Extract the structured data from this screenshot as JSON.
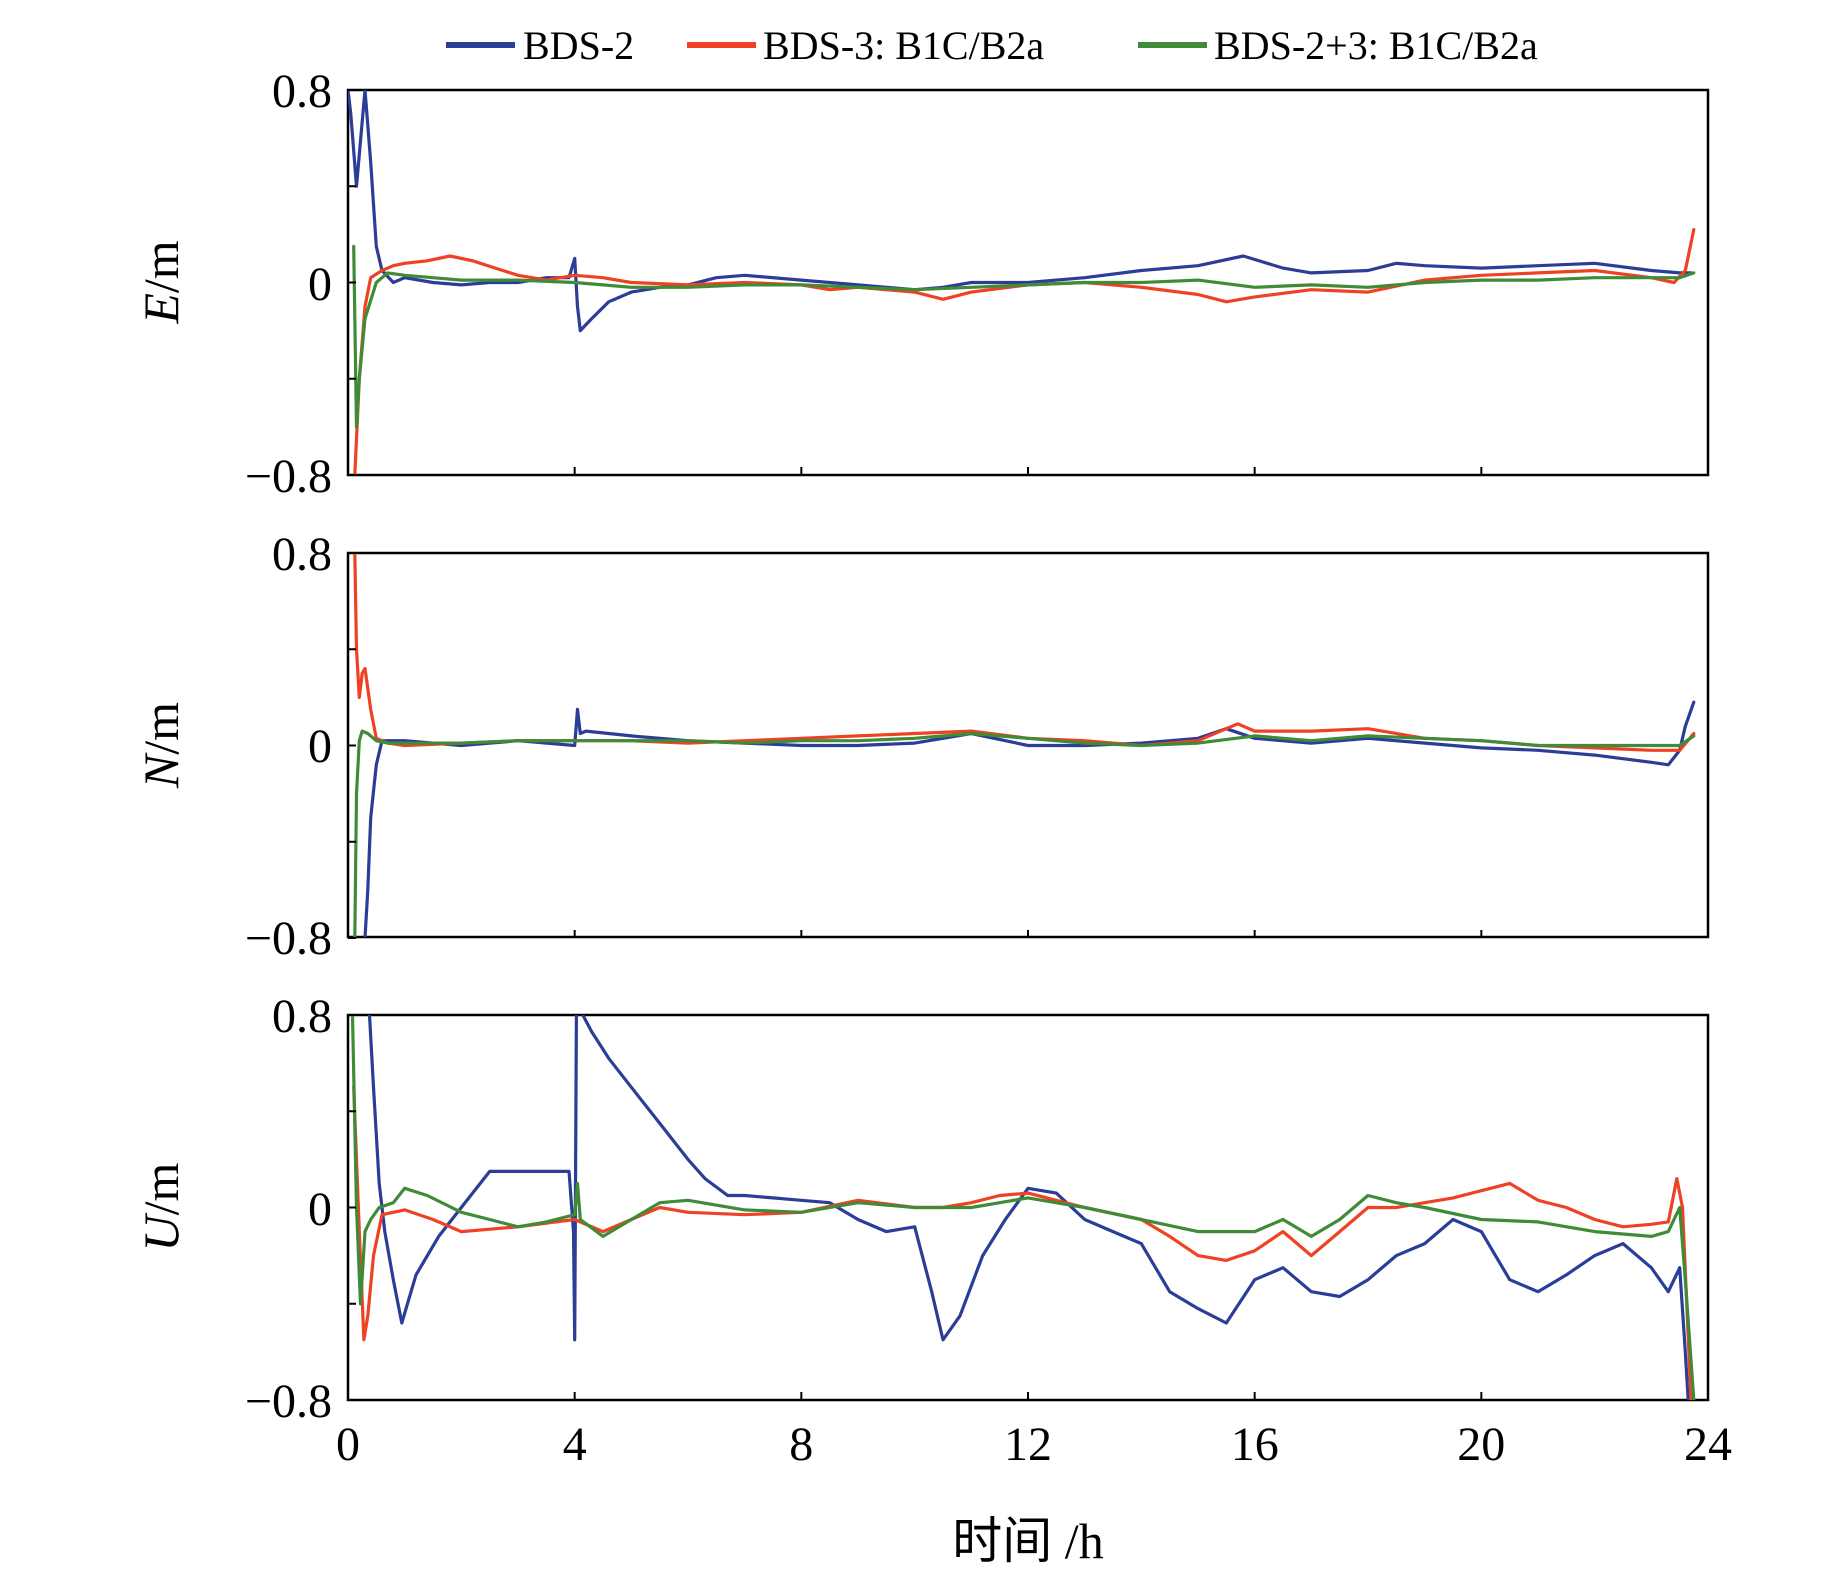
{
  "chart_data": {
    "type": "line",
    "x_title": "时间 /h",
    "xlim": [
      0,
      24
    ],
    "x_ticks": [
      "0",
      "4",
      "8",
      "12",
      "16",
      "20",
      "24"
    ],
    "ylim": [
      -0.8,
      0.8
    ],
    "legend": {
      "placement": "top",
      "entries": [
        {
          "name": "BDS-2",
          "color": "#2b3d97"
        },
        {
          "name": "BDS-3: B1C/B2a",
          "color": "#ef4124"
        },
        {
          "name": "BDS-2+3: B1C/B2a",
          "color": "#3f8b37"
        }
      ]
    },
    "panels": [
      {
        "id": "E",
        "ylabel_italic": "E",
        "ylabel_unit": "/m",
        "y_ticks": [
          "0.8",
          "0",
          "−0.8"
        ],
        "series": [
          {
            "name": "BDS-2",
            "x": [
              0,
              0.05,
              0.15,
              0.3,
              0.4,
              0.5,
              0.6,
              0.8,
              1,
              1.5,
              2,
              2.5,
              3,
              3.5,
              3.9,
              4.0,
              4.05,
              4.1,
              4.3,
              4.6,
              5,
              5.5,
              6,
              6.5,
              7,
              8,
              9,
              10,
              10.5,
              11,
              12,
              13,
              14,
              15,
              15.8,
              16.5,
              17,
              18,
              18.5,
              19,
              20,
              21,
              22,
              23,
              23.5,
              23.7
            ],
            "y": [
              0.8,
              0.7,
              0.4,
              0.8,
              0.5,
              0.15,
              0.05,
              0.0,
              0.02,
              0.0,
              -0.01,
              0.0,
              0.0,
              0.02,
              0.02,
              0.1,
              -0.1,
              -0.2,
              -0.15,
              -0.08,
              -0.04,
              -0.02,
              -0.01,
              0.02,
              0.03,
              0.01,
              -0.01,
              -0.03,
              -0.02,
              0.0,
              0.0,
              0.02,
              0.05,
              0.07,
              0.11,
              0.06,
              0.04,
              0.05,
              0.08,
              0.07,
              0.06,
              0.07,
              0.08,
              0.05,
              0.04,
              0.04
            ]
          },
          {
            "name": "BDS-3: B1C/B2a",
            "x": [
              0.12,
              0.2,
              0.3,
              0.4,
              0.6,
              0.8,
              1,
              1.4,
              1.8,
              2.2,
              2.6,
              3,
              3.5,
              4,
              4.5,
              5,
              6,
              7,
              8,
              8.5,
              9,
              10,
              10.5,
              11,
              12,
              13,
              14,
              15,
              15.5,
              16,
              17,
              18,
              19,
              19.5,
              20,
              21,
              22,
              23,
              23.4,
              23.6,
              23.75
            ],
            "y": [
              -0.8,
              -0.4,
              -0.1,
              0.02,
              0.05,
              0.07,
              0.08,
              0.09,
              0.11,
              0.09,
              0.06,
              0.03,
              0.01,
              0.03,
              0.02,
              0.0,
              -0.01,
              0.0,
              -0.01,
              -0.03,
              -0.02,
              -0.04,
              -0.07,
              -0.04,
              -0.01,
              0.0,
              -0.02,
              -0.05,
              -0.08,
              -0.06,
              -0.03,
              -0.04,
              0.01,
              0.02,
              0.03,
              0.04,
              0.05,
              0.02,
              0.0,
              0.05,
              0.22
            ]
          },
          {
            "name": "BDS-2+3: B1C/B2a",
            "x": [
              0.1,
              0.15,
              0.2,
              0.3,
              0.5,
              0.7,
              1,
              1.5,
              2,
              3,
              4,
              4.5,
              5,
              6,
              7,
              8,
              9,
              10,
              11,
              12,
              13,
              14,
              15,
              16,
              17,
              18,
              19,
              20,
              21,
              22,
              23,
              23.5,
              23.75
            ],
            "y": [
              0.15,
              -0.6,
              -0.4,
              -0.15,
              0.0,
              0.04,
              0.03,
              0.02,
              0.01,
              0.01,
              0.0,
              -0.01,
              -0.02,
              -0.02,
              -0.01,
              -0.01,
              -0.02,
              -0.03,
              -0.02,
              -0.01,
              0.0,
              0.0,
              0.01,
              -0.02,
              -0.01,
              -0.02,
              0.0,
              0.01,
              0.01,
              0.02,
              0.02,
              0.02,
              0.04
            ]
          }
        ]
      },
      {
        "id": "N",
        "ylabel_italic": "N",
        "ylabel_unit": "/m",
        "y_ticks": [
          "0.8",
          "0",
          "−0.8"
        ],
        "series": [
          {
            "name": "BDS-2",
            "x": [
              0.3,
              0.35,
              0.4,
              0.5,
              0.6,
              0.8,
              1,
              2,
              3,
              4,
              4.05,
              4.1,
              4.2,
              5,
              6,
              7,
              8,
              9,
              10,
              11,
              12,
              13,
              14,
              15,
              15.5,
              16,
              17,
              18,
              19,
              20,
              21,
              22,
              23,
              23.3,
              23.5,
              23.6,
              23.75
            ],
            "y": [
              -0.8,
              -0.6,
              -0.3,
              -0.08,
              0.02,
              0.02,
              0.02,
              0.0,
              0.02,
              0.0,
              0.15,
              0.05,
              0.06,
              0.04,
              0.02,
              0.01,
              0.0,
              0.0,
              0.01,
              0.05,
              0.0,
              0.0,
              0.01,
              0.03,
              0.07,
              0.03,
              0.01,
              0.03,
              0.01,
              -0.01,
              -0.02,
              -0.04,
              -0.07,
              -0.08,
              -0.02,
              0.08,
              0.18
            ]
          },
          {
            "name": "BDS-3: B1C/B2a",
            "x": [
              0.12,
              0.15,
              0.2,
              0.25,
              0.3,
              0.4,
              0.5,
              0.7,
              1,
              2,
              3,
              4,
              5,
              6,
              7,
              8,
              9,
              10,
              11,
              12,
              13,
              14,
              15,
              15.7,
              16,
              17,
              18,
              19,
              20,
              21,
              22,
              23,
              23.5,
              23.75
            ],
            "y": [
              0.8,
              0.4,
              0.2,
              0.3,
              0.32,
              0.15,
              0.03,
              0.01,
              0.0,
              0.01,
              0.02,
              0.02,
              0.02,
              0.01,
              0.02,
              0.03,
              0.04,
              0.05,
              0.06,
              0.03,
              0.02,
              0.0,
              0.02,
              0.09,
              0.06,
              0.06,
              0.07,
              0.03,
              0.02,
              0.0,
              -0.01,
              -0.02,
              -0.02,
              0.05
            ]
          },
          {
            "name": "BDS-2+3: B1C/B2a",
            "x": [
              0.12,
              0.15,
              0.2,
              0.25,
              0.35,
              0.5,
              0.7,
              1,
              2,
              3,
              4,
              5,
              6,
              7,
              8,
              9,
              10,
              11,
              12,
              13,
              14,
              15,
              16,
              17,
              18,
              19,
              20,
              21,
              22,
              23,
              23.5,
              23.75
            ],
            "y": [
              -0.8,
              -0.2,
              0.02,
              0.06,
              0.05,
              0.02,
              0.01,
              0.01,
              0.01,
              0.02,
              0.02,
              0.02,
              0.02,
              0.01,
              0.02,
              0.02,
              0.03,
              0.05,
              0.03,
              0.01,
              0.0,
              0.01,
              0.04,
              0.02,
              0.04,
              0.03,
              0.02,
              0.0,
              0.0,
              0.0,
              0.0,
              0.04
            ]
          }
        ]
      },
      {
        "id": "U",
        "ylabel_italic": "U",
        "ylabel_unit": "/m",
        "y_ticks": [
          "0.8",
          "0",
          "−0.8"
        ],
        "series": [
          {
            "name": "BDS-2",
            "x": [
              0.38,
              0.45,
              0.55,
              0.65,
              0.8,
              0.95,
              1.2,
              1.6,
              2,
              2.5,
              3,
              3.5,
              3.9,
              3.98,
              4.0,
              4.03,
              4.1,
              4.3,
              4.6,
              5,
              5.5,
              6,
              6.3,
              6.7,
              7,
              7.5,
              8,
              8.5,
              9,
              9.5,
              10,
              10.3,
              10.5,
              10.8,
              11.2,
              11.6,
              12,
              12.5,
              13,
              13.5,
              14,
              14.5,
              15,
              15.5,
              16,
              16.5,
              17,
              17.5,
              18,
              18.5,
              19,
              19.5,
              20,
              20.5,
              21,
              21.5,
              22,
              22.5,
              23,
              23.3,
              23.5,
              23.6,
              23.65
            ],
            "y": [
              0.8,
              0.5,
              0.1,
              -0.1,
              -0.3,
              -0.48,
              -0.28,
              -0.12,
              0.0,
              0.15,
              0.15,
              0.15,
              0.15,
              -0.1,
              -0.55,
              0.8,
              0.82,
              0.73,
              0.62,
              0.5,
              0.35,
              0.2,
              0.12,
              0.05,
              0.05,
              0.04,
              0.03,
              0.02,
              -0.05,
              -0.1,
              -0.08,
              -0.35,
              -0.55,
              -0.45,
              -0.2,
              -0.05,
              0.08,
              0.06,
              -0.05,
              -0.1,
              -0.15,
              -0.35,
              -0.42,
              -0.48,
              -0.3,
              -0.25,
              -0.35,
              -0.37,
              -0.3,
              -0.2,
              -0.15,
              -0.05,
              -0.1,
              -0.3,
              -0.35,
              -0.28,
              -0.2,
              -0.15,
              -0.25,
              -0.35,
              -0.25,
              -0.6,
              -0.8
            ]
          },
          {
            "name": "BDS-3: B1C/B2a",
            "x": [
              0.1,
              0.2,
              0.28,
              0.35,
              0.45,
              0.6,
              0.8,
              1,
              1.5,
              2,
              3,
              4,
              4.5,
              5,
              5.5,
              6,
              7,
              8,
              9,
              10,
              10.5,
              11,
              11.5,
              12,
              12.5,
              13,
              14,
              14.5,
              15,
              15.5,
              16,
              16.5,
              17,
              17.5,
              18,
              18.5,
              19,
              19.5,
              20,
              20.5,
              21,
              21.5,
              22,
              22.5,
              23,
              23.3,
              23.45,
              23.55,
              23.7
            ],
            "y": [
              0.5,
              -0.1,
              -0.55,
              -0.45,
              -0.2,
              -0.03,
              -0.02,
              -0.01,
              -0.05,
              -0.1,
              -0.08,
              -0.05,
              -0.1,
              -0.05,
              0.0,
              -0.02,
              -0.03,
              -0.02,
              0.03,
              0.0,
              0.0,
              0.02,
              0.05,
              0.06,
              0.03,
              0.0,
              -0.05,
              -0.12,
              -0.2,
              -0.22,
              -0.18,
              -0.1,
              -0.2,
              -0.1,
              0.0,
              0.0,
              0.02,
              0.04,
              0.07,
              0.1,
              0.03,
              0.0,
              -0.05,
              -0.08,
              -0.07,
              -0.06,
              0.12,
              0.0,
              -0.8
            ]
          },
          {
            "name": "BDS-2+3: B1C/B2a",
            "x": [
              0.08,
              0.15,
              0.22,
              0.3,
              0.4,
              0.55,
              0.8,
              1,
              1.4,
              2,
              2.5,
              3,
              3.5,
              4,
              4.05,
              4.1,
              4.5,
              5,
              5.5,
              6,
              7,
              8,
              9,
              10,
              11,
              11.5,
              12,
              13,
              14,
              15,
              16,
              16.5,
              17,
              17.5,
              18,
              18.5,
              19,
              20,
              21,
              22,
              23,
              23.3,
              23.5,
              23.6,
              23.75
            ],
            "y": [
              0.8,
              0.0,
              -0.4,
              -0.1,
              -0.05,
              0.0,
              0.02,
              0.08,
              0.05,
              -0.02,
              -0.05,
              -0.08,
              -0.06,
              -0.03,
              0.1,
              -0.05,
              -0.12,
              -0.05,
              0.02,
              0.03,
              -0.01,
              -0.02,
              0.02,
              0.0,
              0.0,
              0.02,
              0.04,
              0.0,
              -0.05,
              -0.1,
              -0.1,
              -0.05,
              -0.12,
              -0.05,
              0.05,
              0.02,
              0.0,
              -0.05,
              -0.06,
              -0.1,
              -0.12,
              -0.1,
              0.0,
              -0.3,
              -0.8
            ]
          }
        ]
      }
    ]
  }
}
